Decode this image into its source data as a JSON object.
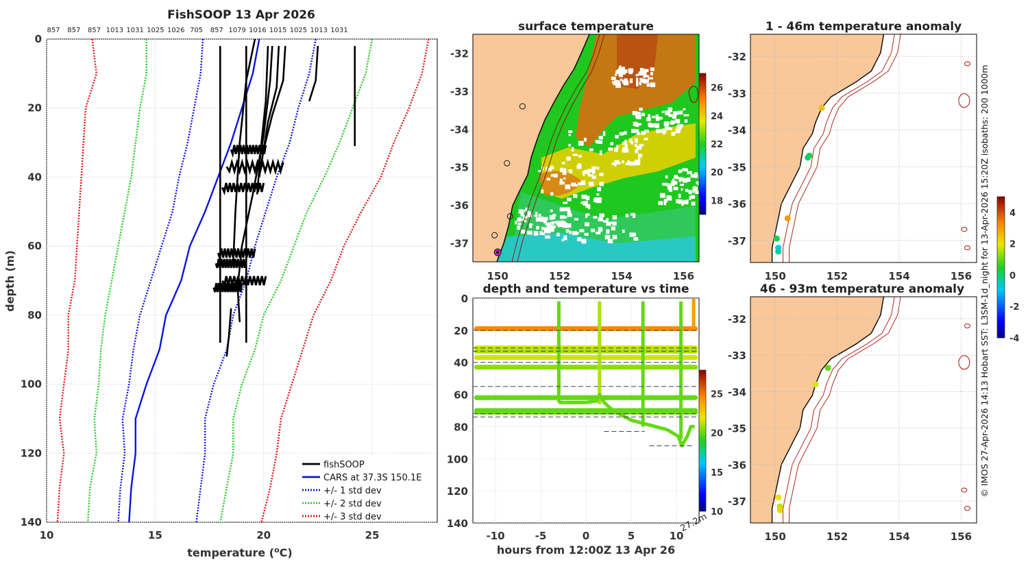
{
  "figure": {
    "credit": "© IMOS 27-Apr-2026 14:13 Hobart SST: L3SM-1d_night for 13-Apr-2026 15:20Z isobaths: 200  1000m",
    "colors": {
      "land": "#f8c89a",
      "coast": "#111111",
      "isobath": "#b0281c",
      "grid": "#aaaaaa"
    }
  },
  "chart_data": [
    {
      "id": "profile",
      "type": "line",
      "title": "FishSOOP 13 Apr 2026",
      "xlabel": "temperature (oC)",
      "ylabel": "depth (m)",
      "xlim": [
        10,
        28
      ],
      "ylim": [
        140,
        0
      ],
      "xticks": [
        10,
        15,
        20,
        25
      ],
      "yticks": [
        0,
        20,
        40,
        60,
        80,
        100,
        120,
        140
      ],
      "xticklabels": [
        "10",
        "15",
        "20",
        "25"
      ],
      "yticklabels": [
        "0",
        "20",
        "40",
        "60",
        "80",
        "100",
        "120",
        "140"
      ],
      "top_labels": [
        "857",
        "857",
        "857",
        "1013",
        "1031",
        "1025",
        "1026",
        "705",
        "857",
        "1079",
        "1016",
        "1015",
        "1025",
        "1013",
        "1031"
      ],
      "legend": [
        {
          "label": "fishSOOP",
          "color": "#000000",
          "style": "solid"
        },
        {
          "label": "CARS at 37.3S 150.1E",
          "color": "#0a14e0",
          "style": "solid"
        },
        {
          "label": "+/- 1 std dev",
          "color": "#0a14e0",
          "style": "dotted"
        },
        {
          "label": "+/- 2 std dev",
          "color": "#22cc22",
          "style": "dotted"
        },
        {
          "label": "+/- 3 std dev",
          "color": "#e01414",
          "style": "dotted"
        }
      ],
      "depths": [
        0,
        10,
        20,
        30,
        40,
        50,
        60,
        70,
        80,
        90,
        100,
        110,
        120,
        130,
        140
      ],
      "cars_mean": [
        19.8,
        19.5,
        19.0,
        18.5,
        17.9,
        17.3,
        16.6,
        16.2,
        15.5,
        15.2,
        14.6,
        14.1,
        14.1,
        13.9,
        13.8
      ],
      "series_lines": [
        {
          "name": "cars",
          "color": "#0a14e0",
          "dash": "",
          "values": [
            19.8,
            19.5,
            19.0,
            18.5,
            17.9,
            17.3,
            16.6,
            16.2,
            15.5,
            15.2,
            14.6,
            14.1,
            14.1,
            13.9,
            13.8
          ]
        },
        {
          "name": "minus1",
          "color": "#0a14e0",
          "dash": "2,2",
          "values": [
            17.2,
            17.1,
            16.8,
            16.5,
            16.1,
            15.8,
            15.3,
            14.8,
            14.3,
            14.0,
            13.8,
            13.5,
            13.6,
            13.4,
            13.3
          ]
        },
        {
          "name": "plus1",
          "color": "#0a14e0",
          "dash": "2,2",
          "values": [
            22.4,
            22.1,
            21.6,
            21.2,
            20.6,
            20.1,
            19.6,
            19.2,
            18.6,
            18.3,
            17.7,
            17.3,
            17.3,
            17.1,
            16.9
          ]
        },
        {
          "name": "minus2",
          "color": "#22cc22",
          "dash": "2,2",
          "values": [
            14.6,
            14.6,
            14.3,
            14.1,
            13.9,
            13.6,
            13.3,
            13.0,
            12.7,
            12.5,
            12.4,
            12.2,
            12.3,
            12.0,
            11.9
          ]
        },
        {
          "name": "plus2",
          "color": "#22cc22",
          "dash": "2,2",
          "values": [
            25.0,
            24.7,
            24.1,
            23.5,
            22.8,
            22.0,
            21.4,
            20.8,
            20.0,
            19.6,
            19.0,
            18.6,
            18.6,
            18.3,
            18.0
          ]
        },
        {
          "name": "minus3",
          "color": "#e01414",
          "dash": "2,2",
          "values": [
            12.1,
            12.3,
            11.8,
            11.7,
            11.6,
            11.5,
            11.4,
            11.3,
            11.0,
            11.0,
            10.8,
            10.6,
            10.8,
            10.6,
            10.5
          ]
        },
        {
          "name": "plus3",
          "color": "#e01414",
          "dash": "2,2",
          "values": [
            27.6,
            27.3,
            26.7,
            26.0,
            25.4,
            24.5,
            23.7,
            23.1,
            22.3,
            21.8,
            21.3,
            20.8,
            20.6,
            20.3,
            19.9
          ]
        }
      ],
      "fishsoop": [
        {
          "points": [
            [
              18.0,
              2
            ],
            [
              18.0,
              88
            ]
          ]
        },
        {
          "points": [
            [
              19.2,
              2
            ],
            [
              19.2,
              88
            ]
          ]
        },
        {
          "points": [
            [
              20.2,
              2
            ],
            [
              20.1,
              18
            ],
            [
              19.9,
              30
            ],
            [
              19.7,
              45
            ]
          ]
        },
        {
          "points": [
            [
              20.4,
              2
            ],
            [
              20.3,
              12
            ],
            [
              20.0,
              28
            ],
            [
              19.5,
              45
            ],
            [
              19.0,
              60
            ],
            [
              18.8,
              72
            ],
            [
              18.9,
              82
            ]
          ]
        },
        {
          "points": [
            [
              20.7,
              2
            ],
            [
              20.6,
              14
            ],
            [
              20.2,
              24
            ],
            [
              19.8,
              40
            ]
          ]
        },
        {
          "points": [
            [
              21.0,
              2
            ],
            [
              20.9,
              12
            ],
            [
              20.4,
              22
            ],
            [
              20.0,
              32
            ]
          ]
        },
        {
          "points": [
            [
              22.5,
              2
            ],
            [
              22.4,
              12
            ],
            [
              22.1,
              18
            ]
          ]
        },
        {
          "points": [
            [
              24.2,
              2
            ],
            [
              24.2,
              31
            ]
          ]
        },
        {
          "points": [
            [
              19.6,
              0
            ],
            [
              19.2,
              12
            ],
            [
              18.9,
              30
            ],
            [
              18.7,
              50
            ],
            [
              18.6,
              65
            ]
          ]
        },
        {
          "points": [
            [
              18.5,
              78
            ],
            [
              18.4,
              86
            ],
            [
              18.3,
              92
            ]
          ]
        }
      ],
      "fishsoop_wiggles": [
        {
          "depth": 32,
          "t0": 18.5,
          "t1": 20.1
        },
        {
          "depth": 37,
          "t0": 18.3,
          "t1": 20.9
        },
        {
          "depth": 43,
          "t0": 18.1,
          "t1": 20.0
        },
        {
          "depth": 62,
          "t0": 17.9,
          "t1": 19.6
        },
        {
          "depth": 65,
          "t0": 17.8,
          "t1": 19.2
        },
        {
          "depth": 70,
          "t0": 18.1,
          "t1": 20.1
        },
        {
          "depth": 72,
          "t0": 17.7,
          "t1": 19.0
        }
      ]
    },
    {
      "id": "sst",
      "type": "heatmap",
      "title": "surface temperature",
      "xlim": [
        149.2,
        156.5
      ],
      "ylim": [
        -37.5,
        -31.5
      ],
      "xticks": [
        150,
        152,
        154,
        156
      ],
      "yticks": [
        -32,
        -33,
        -34,
        -35,
        -36,
        -37
      ],
      "xticklabels": [
        "150",
        "152",
        "154",
        "156"
      ],
      "yticklabels": [
        "-32",
        "-33",
        "-34",
        "-35",
        "-36",
        "-37"
      ],
      "colorbar": {
        "min": 17,
        "max": 27,
        "ticks": [
          18,
          20,
          22,
          24,
          26
        ],
        "ticklabels": [
          "18",
          "20",
          "22",
          "24",
          "26"
        ]
      },
      "stations": [
        {
          "lon": 150.8,
          "lat": -33.4,
          "color": "none"
        },
        {
          "lon": 150.3,
          "lat": -34.9,
          "color": "none"
        },
        {
          "lon": 150.4,
          "lat": -36.3,
          "color": "none"
        },
        {
          "lon": 149.9,
          "lat": -36.8,
          "color": "none"
        },
        {
          "lon": 150.0,
          "lat": -37.25,
          "color": "#cc22cc"
        }
      ]
    },
    {
      "id": "anom1",
      "type": "scatter",
      "title": "1 - 46m temperature anomaly",
      "xlim": [
        149.2,
        156.5
      ],
      "ylim": [
        -37.6,
        -31.4
      ],
      "xticks": [
        150,
        152,
        154,
        156
      ],
      "yticks": [
        -32,
        -33,
        -34,
        -35,
        -36,
        -37
      ],
      "xticklabels": [
        "150",
        "152",
        "154",
        "156"
      ],
      "yticklabels": [
        "-32",
        "-33",
        "-34",
        "-35",
        "-36",
        "-37"
      ],
      "points": [
        {
          "lon": 151.5,
          "lat": -33.4,
          "anomaly": 2.5
        },
        {
          "lon": 151.1,
          "lat": -34.7,
          "anomaly": 0.3
        },
        {
          "lon": 151.05,
          "lat": -34.75,
          "anomaly": 0.0
        },
        {
          "lon": 150.4,
          "lat": -36.4,
          "anomaly": 3.0
        },
        {
          "lon": 150.05,
          "lat": -36.95,
          "anomaly": 0.2
        },
        {
          "lon": 150.1,
          "lat": -37.2,
          "anomaly": -0.8
        },
        {
          "lon": 150.1,
          "lat": -37.3,
          "anomaly": -0.3
        }
      ],
      "colorbar": {
        "min": -4,
        "max": 5,
        "ticks": [
          -4,
          -2,
          0,
          2,
          4
        ],
        "ticklabels": [
          "-4",
          "-2",
          "0",
          "2",
          "4"
        ]
      }
    },
    {
      "id": "anom2",
      "type": "scatter",
      "title": "46 - 93m temperature anomaly",
      "xlim": [
        149.2,
        156.5
      ],
      "ylim": [
        -37.6,
        -31.4
      ],
      "xticks": [
        150,
        152,
        154,
        156
      ],
      "yticks": [
        -32,
        -33,
        -34,
        -35,
        -36,
        -37
      ],
      "xticklabels": [
        "150",
        "152",
        "154",
        "156"
      ],
      "yticklabels": [
        "-32",
        "-33",
        "-34",
        "-35",
        "-36",
        "-37"
      ],
      "points": [
        {
          "lon": 151.7,
          "lat": -33.35,
          "anomaly": 1.0
        },
        {
          "lon": 151.3,
          "lat": -33.8,
          "anomaly": 1.8
        },
        {
          "lon": 150.1,
          "lat": -36.9,
          "anomaly": 2.0
        },
        {
          "lon": 150.15,
          "lat": -37.15,
          "anomaly": 1.6
        },
        {
          "lon": 150.15,
          "lat": -37.25,
          "anomaly": 2.2
        }
      ]
    },
    {
      "id": "timeseries",
      "type": "scatter",
      "title": "depth and temperature vs time",
      "xlabel": "hours from 12:00Z 13 Apr 26",
      "xlim": [
        -12.5,
        12.5
      ],
      "ylim": [
        140,
        0
      ],
      "xticks": [
        -10,
        -5,
        0,
        5,
        10
      ],
      "yticks": [
        0,
        20,
        40,
        60,
        80,
        100,
        120,
        140
      ],
      "xticklabels": [
        "-10",
        "-5",
        "0",
        "5",
        "10"
      ],
      "yticklabels": [
        "0",
        "20",
        "40",
        "60",
        "80",
        "100",
        "120",
        "140"
      ],
      "corner_label": "27.2m",
      "colorbar": {
        "min": 10,
        "max": 28,
        "ticks": [
          10,
          15,
          20,
          25
        ],
        "ticklabels": [
          "10",
          "15",
          "20",
          "25"
        ]
      },
      "bands": [
        {
          "depth": 19,
          "temp": 24.5
        },
        {
          "depth": 31,
          "temp": 21.5
        },
        {
          "depth": 33,
          "temp": 21.0
        },
        {
          "depth": 37,
          "temp": 21.5
        },
        {
          "depth": 43,
          "temp": 20.5
        },
        {
          "depth": 62,
          "temp": 20.0
        },
        {
          "depth": 70,
          "temp": 20.0
        },
        {
          "depth": 71,
          "temp": 20.0
        }
      ],
      "dashed_depths": [
        20,
        31,
        33,
        40,
        55,
        72,
        74
      ],
      "short_dashes": [
        {
          "depth": 83,
          "t0": 2.0,
          "t1": 6.5
        },
        {
          "depth": 92,
          "t0": 7.0,
          "t1": 12.0
        }
      ],
      "verticals": [
        {
          "time": -3.0,
          "top": 2,
          "bottom": 65,
          "temp": 20.0
        },
        {
          "time": 1.5,
          "top": 2,
          "bottom": 66,
          "temp": 21.0
        },
        {
          "time": 6.3,
          "top": 2,
          "bottom": 80,
          "temp": 20.0
        },
        {
          "time": 10.5,
          "top": 2,
          "bottom": 88,
          "temp": 20.0
        }
      ],
      "dive": [
        [
          -3.0,
          65
        ],
        [
          0,
          65
        ],
        [
          1.2,
          64
        ],
        [
          1.5,
          60
        ],
        [
          2.0,
          65
        ],
        [
          3.0,
          70
        ],
        [
          5.0,
          76
        ],
        [
          7.0,
          79
        ],
        [
          9.0,
          82
        ],
        [
          10.2,
          86
        ],
        [
          10.6,
          92
        ],
        [
          11.2,
          86
        ],
        [
          11.6,
          80
        ],
        [
          12.0,
          80
        ]
      ]
    }
  ]
}
